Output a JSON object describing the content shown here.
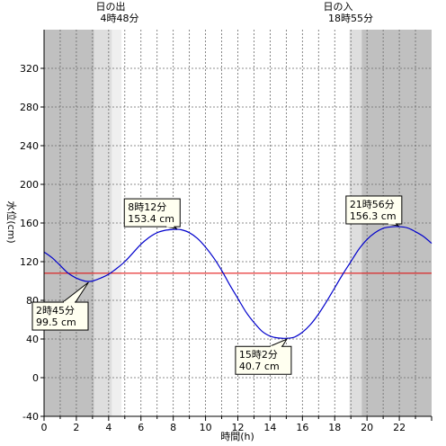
{
  "chart_data": {
    "type": "line",
    "xlabel": "時間(h)",
    "ylabel": "水位(cm)",
    "xlim": [
      0,
      24
    ],
    "ylim": [
      -40,
      360
    ],
    "x_ticks": [
      0,
      2,
      4,
      6,
      8,
      10,
      12,
      14,
      16,
      18,
      20,
      22
    ],
    "y_ticks": [
      -40,
      0,
      40,
      80,
      120,
      160,
      200,
      240,
      280,
      320
    ],
    "grid": true,
    "reference_line": {
      "y": 108,
      "color": "#e00000"
    },
    "sunrise": {
      "label": "日の出",
      "time_text": "4時48分",
      "hour": 4.8
    },
    "sunset": {
      "label": "日の入",
      "time_text": "18時55分",
      "hour": 18.917
    },
    "series": [
      {
        "color": "#0000cc",
        "x": [
          0,
          0.5,
          1,
          1.5,
          2,
          2.5,
          2.75,
          3,
          3.5,
          4,
          4.5,
          5,
          5.5,
          6,
          6.5,
          7,
          7.5,
          8,
          8.2,
          8.5,
          9,
          9.5,
          10,
          10.5,
          11,
          11.5,
          12,
          12.5,
          13,
          13.5,
          14,
          14.5,
          15.03,
          15.5,
          16,
          16.5,
          17,
          17.5,
          18,
          18.5,
          19,
          19.5,
          20,
          20.5,
          21,
          21.5,
          21.93,
          22.5,
          23,
          23.5,
          24
        ],
        "y": [
          130,
          124,
          116,
          108,
          103,
          100,
          99.5,
          100,
          103,
          107,
          113,
          120,
          129,
          138,
          145,
          150,
          152.5,
          153.3,
          153.4,
          153,
          150,
          144,
          135,
          124,
          111,
          96,
          82,
          68,
          57,
          48,
          43,
          41,
          40.7,
          42,
          47,
          55,
          66,
          79,
          93,
          107,
          120,
          133,
          143,
          150,
          154.5,
          156,
          156.3,
          155,
          151,
          146,
          139
        ]
      }
    ],
    "annotations": [
      {
        "text_lines": [
          "8時12分",
          "153.4 cm"
        ],
        "x": 8.2,
        "y": 153.4
      },
      {
        "text_lines": [
          "2時45分",
          "99.5 cm"
        ],
        "x": 2.75,
        "y": 99.5
      },
      {
        "text_lines": [
          "15時2分",
          "40.7 cm"
        ],
        "x": 15.03,
        "y": 40.7
      },
      {
        "text_lines": [
          "21時56分",
          "156.3 cm"
        ],
        "x": 21.93,
        "y": 156.3
      }
    ]
  }
}
